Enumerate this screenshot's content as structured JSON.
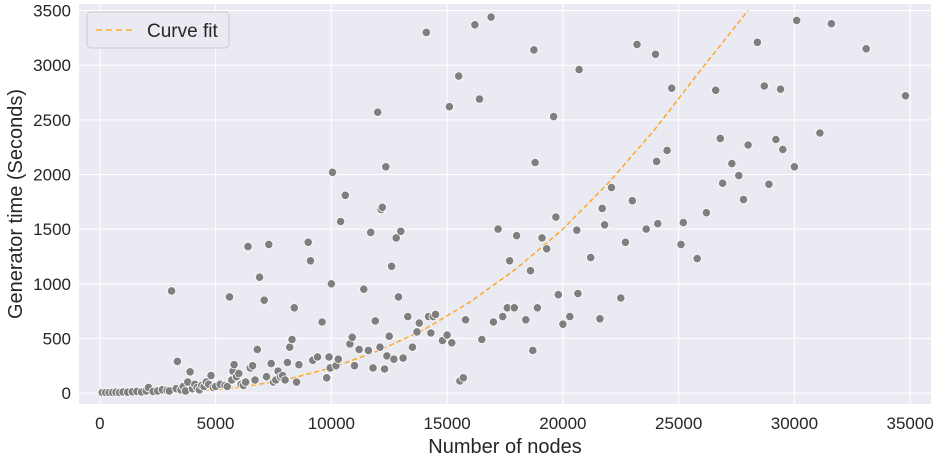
{
  "chart_data": {
    "type": "scatter",
    "xlabel": "Number of nodes",
    "ylabel": "Generator time (Seconds)",
    "xlim": [
      -900,
      35900
    ],
    "ylim": [
      -100,
      3560
    ],
    "xticks": [
      0,
      5000,
      10000,
      15000,
      20000,
      25000,
      30000,
      35000
    ],
    "yticks": [
      0,
      500,
      1000,
      1500,
      2000,
      2500,
      3000,
      3500
    ],
    "grid": true,
    "legend_position": "top-left",
    "colors": {
      "background": "#eaeaf2",
      "grid": "#ffffff",
      "points": "#7f7f7f",
      "point_edge": "#ffffff",
      "fit": "#ffa726"
    },
    "series": [
      {
        "type": "scatter",
        "points": [
          [
            100,
            5
          ],
          [
            250,
            5
          ],
          [
            400,
            5
          ],
          [
            550,
            6
          ],
          [
            700,
            8
          ],
          [
            850,
            5
          ],
          [
            1000,
            10
          ],
          [
            1200,
            8
          ],
          [
            1400,
            12
          ],
          [
            1600,
            15
          ],
          [
            1800,
            10
          ],
          [
            2000,
            20
          ],
          [
            2100,
            50
          ],
          [
            2300,
            15
          ],
          [
            2500,
            20
          ],
          [
            2700,
            30
          ],
          [
            2900,
            25
          ],
          [
            3000,
            20
          ],
          [
            3100,
            935
          ],
          [
            3300,
            40
          ],
          [
            3350,
            290
          ],
          [
            3500,
            30
          ],
          [
            3600,
            60
          ],
          [
            3700,
            20
          ],
          [
            3800,
            100
          ],
          [
            3900,
            195
          ],
          [
            4000,
            40
          ],
          [
            4100,
            80
          ],
          [
            4200,
            50
          ],
          [
            4300,
            30
          ],
          [
            4400,
            70
          ],
          [
            4500,
            60
          ],
          [
            4600,
            100
          ],
          [
            4700,
            80
          ],
          [
            4800,
            160
          ],
          [
            4900,
            50
          ],
          [
            5000,
            60
          ],
          [
            5200,
            80
          ],
          [
            5400,
            70
          ],
          [
            5500,
            60
          ],
          [
            5600,
            880
          ],
          [
            5700,
            120
          ],
          [
            5750,
            200
          ],
          [
            5800,
            260
          ],
          [
            5900,
            150
          ],
          [
            6000,
            180
          ],
          [
            6100,
            80
          ],
          [
            6200,
            70
          ],
          [
            6300,
            100
          ],
          [
            6400,
            1340
          ],
          [
            6500,
            230
          ],
          [
            6600,
            250
          ],
          [
            6700,
            120
          ],
          [
            6800,
            400
          ],
          [
            6900,
            1060
          ],
          [
            7100,
            850
          ],
          [
            7200,
            150
          ],
          [
            7300,
            1360
          ],
          [
            7400,
            270
          ],
          [
            7500,
            100
          ],
          [
            7600,
            120
          ],
          [
            7700,
            200
          ],
          [
            7800,
            150
          ],
          [
            7900,
            160
          ],
          [
            8000,
            120
          ],
          [
            8100,
            280
          ],
          [
            8200,
            420
          ],
          [
            8300,
            490
          ],
          [
            8400,
            780
          ],
          [
            8500,
            100
          ],
          [
            8600,
            260
          ],
          [
            9000,
            1380
          ],
          [
            9100,
            1210
          ],
          [
            9200,
            300
          ],
          [
            9400,
            330
          ],
          [
            9600,
            650
          ],
          [
            9800,
            140
          ],
          [
            9900,
            330
          ],
          [
            9950,
            230
          ],
          [
            10000,
            1000
          ],
          [
            10050,
            2020
          ],
          [
            10200,
            250
          ],
          [
            10300,
            310
          ],
          [
            10400,
            1570
          ],
          [
            10600,
            1810
          ],
          [
            10800,
            450
          ],
          [
            10900,
            510
          ],
          [
            11000,
            250
          ],
          [
            11200,
            400
          ],
          [
            11400,
            950
          ],
          [
            11600,
            390
          ],
          [
            11700,
            1470
          ],
          [
            11800,
            230
          ],
          [
            11900,
            660
          ],
          [
            12000,
            2570
          ],
          [
            12100,
            420
          ],
          [
            12150,
            1680
          ],
          [
            12200,
            1700
          ],
          [
            12300,
            220
          ],
          [
            12350,
            2070
          ],
          [
            12400,
            340
          ],
          [
            12500,
            520
          ],
          [
            12600,
            1160
          ],
          [
            12700,
            310
          ],
          [
            12800,
            1420
          ],
          [
            12900,
            880
          ],
          [
            13000,
            1480
          ],
          [
            13100,
            320
          ],
          [
            13300,
            700
          ],
          [
            13500,
            420
          ],
          [
            13700,
            560
          ],
          [
            13800,
            640
          ],
          [
            14100,
            3300
          ],
          [
            14200,
            700
          ],
          [
            14300,
            550
          ],
          [
            14400,
            700
          ],
          [
            14500,
            720
          ],
          [
            14800,
            480
          ],
          [
            15000,
            530
          ],
          [
            15100,
            2620
          ],
          [
            15200,
            460
          ],
          [
            15500,
            2900
          ],
          [
            15550,
            110
          ],
          [
            15700,
            140
          ],
          [
            15800,
            670
          ],
          [
            16200,
            3370
          ],
          [
            16400,
            2690
          ],
          [
            16500,
            490
          ],
          [
            16900,
            3440
          ],
          [
            17000,
            650
          ],
          [
            17200,
            1500
          ],
          [
            17400,
            700
          ],
          [
            17600,
            780
          ],
          [
            17700,
            1210
          ],
          [
            17900,
            780
          ],
          [
            18000,
            1440
          ],
          [
            18400,
            670
          ],
          [
            18600,
            1120
          ],
          [
            18700,
            390
          ],
          [
            18750,
            3140
          ],
          [
            18800,
            2110
          ],
          [
            18900,
            780
          ],
          [
            19100,
            1420
          ],
          [
            19300,
            1320
          ],
          [
            19600,
            2530
          ],
          [
            19700,
            1610
          ],
          [
            19800,
            900
          ],
          [
            20000,
            630
          ],
          [
            20300,
            700
          ],
          [
            20600,
            1490
          ],
          [
            20650,
            910
          ],
          [
            20700,
            2960
          ],
          [
            21200,
            1240
          ],
          [
            21600,
            680
          ],
          [
            21700,
            1690
          ],
          [
            21800,
            1540
          ],
          [
            22100,
            1880
          ],
          [
            22500,
            870
          ],
          [
            22700,
            1380
          ],
          [
            23000,
            1760
          ],
          [
            23200,
            3190
          ],
          [
            23600,
            1500
          ],
          [
            24000,
            3100
          ],
          [
            24050,
            2120
          ],
          [
            24100,
            1550
          ],
          [
            24500,
            2220
          ],
          [
            24700,
            2790
          ],
          [
            25100,
            1360
          ],
          [
            25200,
            1560
          ],
          [
            25800,
            1230
          ],
          [
            26200,
            1650
          ],
          [
            26600,
            2770
          ],
          [
            26800,
            2330
          ],
          [
            26900,
            1920
          ],
          [
            27300,
            2100
          ],
          [
            27600,
            1990
          ],
          [
            27800,
            1770
          ],
          [
            28000,
            2270
          ],
          [
            28400,
            3210
          ],
          [
            28700,
            2810
          ],
          [
            28900,
            1910
          ],
          [
            29200,
            2320
          ],
          [
            29400,
            2780
          ],
          [
            29500,
            2230
          ],
          [
            30000,
            2070
          ],
          [
            30100,
            3410
          ],
          [
            31100,
            2380
          ],
          [
            31600,
            3380
          ],
          [
            33100,
            3150
          ],
          [
            34800,
            2720
          ]
        ]
      },
      {
        "type": "line",
        "name": "Curve fit",
        "style": "dashed",
        "points": [
          [
            0,
            0
          ],
          [
            2000,
            3
          ],
          [
            4000,
            16
          ],
          [
            6000,
            52
          ],
          [
            8000,
            120
          ],
          [
            10000,
            230
          ],
          [
            12000,
            385
          ],
          [
            14000,
            580
          ],
          [
            16000,
            835
          ],
          [
            18000,
            1140
          ],
          [
            20000,
            1500
          ],
          [
            22000,
            1930
          ],
          [
            24000,
            2420
          ],
          [
            26000,
            2970
          ],
          [
            28000,
            3500
          ]
        ]
      }
    ]
  }
}
